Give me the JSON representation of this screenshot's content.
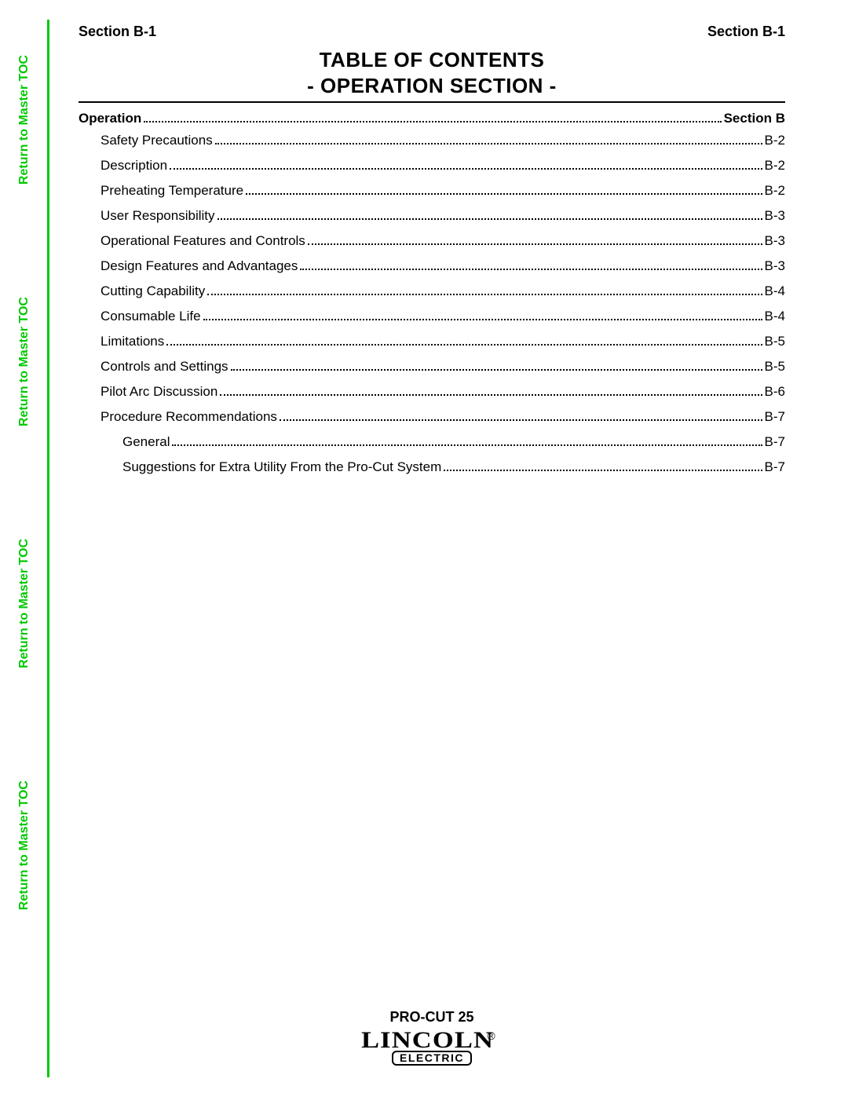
{
  "header": {
    "left": "Section B-1",
    "right": "Section B-1"
  },
  "title": {
    "line1": "TABLE OF CONTENTS",
    "line2": "- OPERATION SECTION -"
  },
  "sidebarLinks": [
    "Return to Master TOC",
    "Return to Master TOC",
    "Return to Master TOC",
    "Return to Master TOC"
  ],
  "toc": {
    "section": {
      "label": "Operation",
      "page": "Section B"
    },
    "items": [
      {
        "label": "Safety Precautions",
        "page": "B-2",
        "indent": 1
      },
      {
        "label": "Description",
        "page": "B-2",
        "indent": 1
      },
      {
        "label": "Preheating Temperature",
        "page": "B-2",
        "indent": 1
      },
      {
        "label": "User Responsibility",
        "page": "B-3",
        "indent": 1
      },
      {
        "label": "Operational Features and Controls",
        "page": "B-3",
        "indent": 1
      },
      {
        "label": "Design Features and Advantages",
        "page": "B-3",
        "indent": 1
      },
      {
        "label": "Cutting Capability",
        "page": "B-4",
        "indent": 1
      },
      {
        "label": "Consumable Life",
        "page": "B-4",
        "indent": 1
      },
      {
        "label": "Limitations",
        "page": "B-5",
        "indent": 1
      },
      {
        "label": "Controls and Settings",
        "page": "B-5",
        "indent": 1
      },
      {
        "label": "Pilot Arc Discussion",
        "page": "B-6",
        "indent": 1
      },
      {
        "label": "Procedure Recommendations",
        "page": "B-7",
        "indent": 1
      },
      {
        "label": "General",
        "page": "B-7",
        "indent": 2
      },
      {
        "label": "Suggestions for Extra Utility From the Pro-Cut System",
        "page": "B-7",
        "indent": 2
      }
    ]
  },
  "footer": {
    "product": "PRO-CUT 25",
    "logoTop": "LINCOLN",
    "logoReg": "®",
    "logoBottom": "ELECTRIC"
  },
  "colors": {
    "green": "#00c800",
    "black": "#000000",
    "background": "#ffffff"
  }
}
